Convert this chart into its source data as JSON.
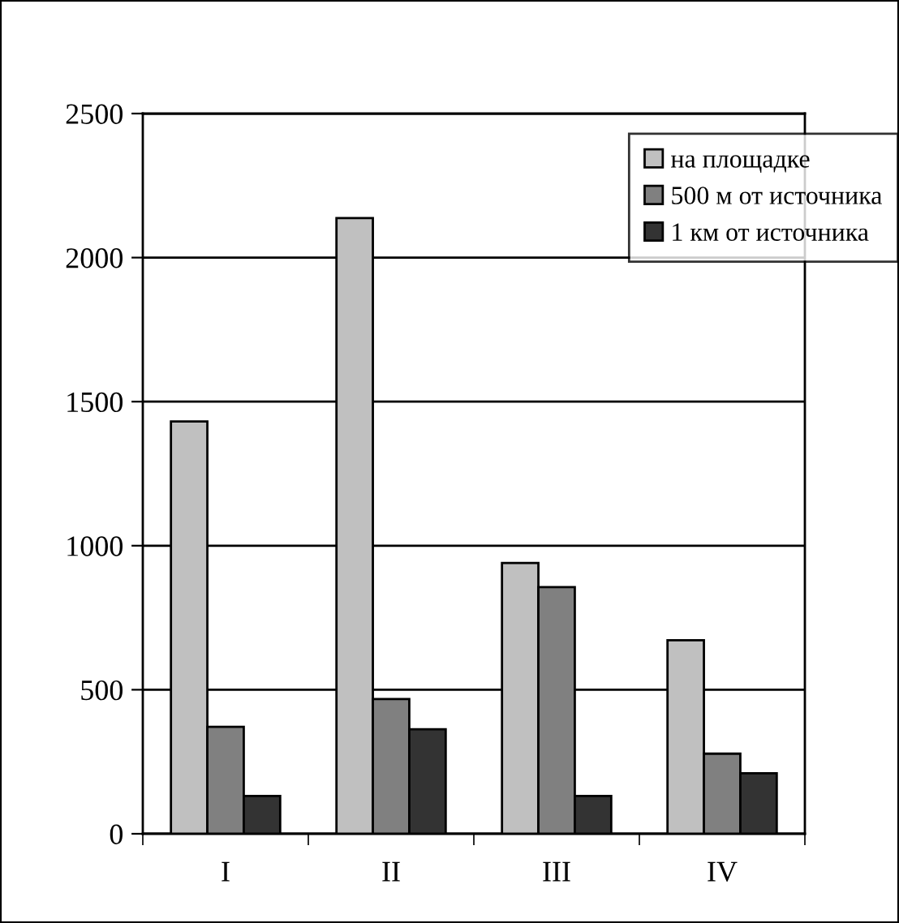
{
  "chart_data": {
    "type": "bar",
    "categories": [
      "I",
      "II",
      "III",
      "IV"
    ],
    "series": [
      {
        "name": "на площадке",
        "color": "#c0c0c0",
        "values": [
          1431,
          2137,
          940,
          672
        ]
      },
      {
        "name": "500 м от источника",
        "color": "#808080",
        "values": [
          371,
          468,
          856,
          278
        ]
      },
      {
        "name": "1 км от источника",
        "color": "#333333",
        "values": [
          131,
          363,
          131,
          210
        ]
      }
    ],
    "ylim": [
      0,
      2500
    ],
    "yticks": [
      0,
      500,
      1000,
      1500,
      2000,
      2500
    ],
    "grid": "y",
    "legend": "top right"
  }
}
